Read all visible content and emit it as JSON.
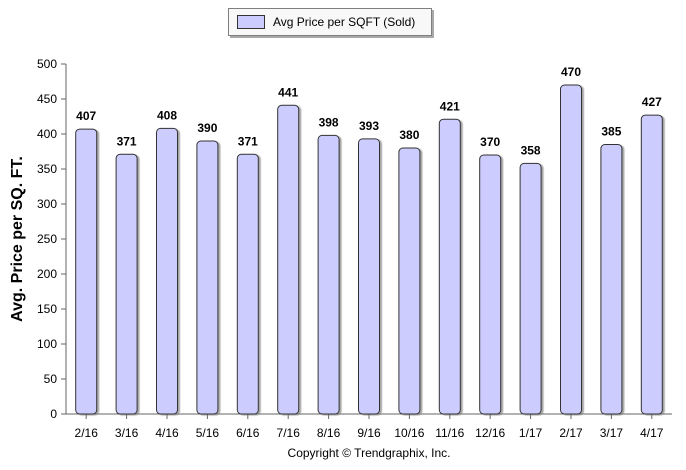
{
  "legend": {
    "label": "Avg Price per SQFT (Sold)",
    "swatch_color": "#ccccff"
  },
  "footer": {
    "copyright": "Copyright © Trendgraphix, Inc."
  },
  "colors": {
    "bar_fill": "#ccccff",
    "bar_stroke": "#333333",
    "axis": "#666666",
    "text": "#000000",
    "legend_background": "#f8f8f8"
  },
  "chart_data": {
    "type": "bar",
    "title": "",
    "xlabel": "",
    "ylabel": "Avg. Price per SQ. FT.",
    "ylim": [
      0,
      500
    ],
    "yticks": [
      0,
      50,
      100,
      150,
      200,
      250,
      300,
      350,
      400,
      450,
      500
    ],
    "grid": false,
    "legend_position": "top",
    "categories": [
      "2/16",
      "3/16",
      "4/16",
      "5/16",
      "6/16",
      "7/16",
      "8/16",
      "9/16",
      "10/16",
      "11/16",
      "12/16",
      "1/17",
      "2/17",
      "3/17",
      "4/17"
    ],
    "series": [
      {
        "name": "Avg Price per SQFT (Sold)",
        "values": [
          407,
          371,
          408,
          390,
          371,
          441,
          398,
          393,
          380,
          421,
          370,
          358,
          470,
          385,
          427
        ]
      }
    ],
    "data_labels": [
      "407",
      "371",
      "408",
      "390",
      "371",
      "441",
      "398",
      "393",
      "380",
      "421",
      "370",
      "358",
      "470",
      "385",
      "427"
    ]
  }
}
